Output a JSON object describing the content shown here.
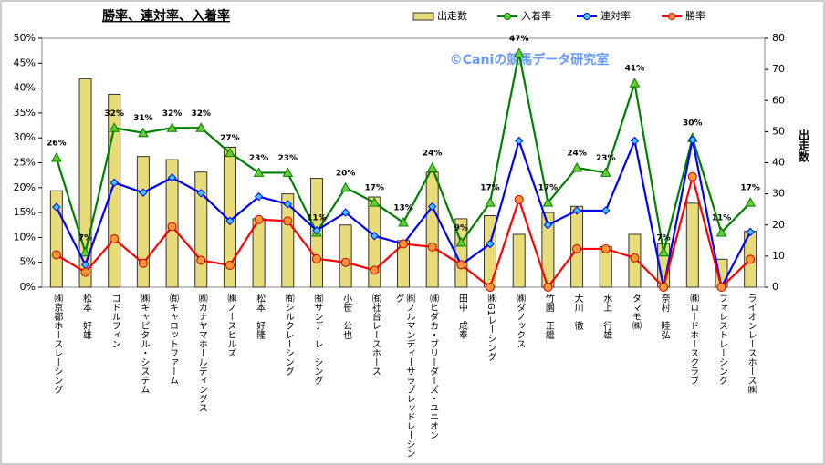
{
  "chart_data": {
    "type": "bar",
    "title": "勝率、連対率、入着率",
    "watermark": "©Caniの競馬データ研究室",
    "y2label": "出走数",
    "categories": [
      "㈱京都ホースレーシング",
      "松本　好雄",
      "ゴドルフィン",
      "㈱キャピタル・システム",
      "㈲キャロットファーム",
      "㈱カナヤマホールディングス",
      "㈱ノースヒルズ",
      "松本　好隆",
      "㈲シルクレーシング",
      "㈲サンデーレーシング",
      "小笹　公也",
      "㈲社台レースホース",
      "㈱ノルマンディーサラブレッドレーシング",
      "㈱ヒダカ・ブリーダーズ・ユニオン",
      "田中　成奉",
      "㈱G1レーシング",
      "㈱ダノックス",
      "竹園　正繼",
      "大川　徹",
      "水上　行雄",
      "タマモ㈱",
      "奈村　睦弘",
      "㈱ロードホースクラブ",
      "フォレストレーシング",
      "ライオンレースホース㈱"
    ],
    "series": [
      {
        "name": "出走数",
        "type": "bar",
        "axis": "y2",
        "color": "#e8dc7a",
        "values": [
          31,
          67,
          62,
          42,
          41,
          37,
          45,
          22,
          30,
          35,
          20,
          29,
          15,
          37,
          22,
          23,
          17,
          24,
          26,
          13,
          17,
          14,
          27,
          9,
          18
        ]
      },
      {
        "name": "入着率",
        "type": "line",
        "marker": "triangle",
        "color": "#008000",
        "marker_color": "#66cc33",
        "values": [
          26,
          7,
          32,
          31,
          32,
          32,
          27,
          23,
          23,
          11,
          20,
          17,
          13,
          24,
          9,
          17,
          47,
          17,
          24,
          23,
          41,
          7,
          30,
          11,
          17
        ],
        "value_labels": [
          "26%",
          "7%",
          "32%",
          "31%",
          "32%",
          "32%",
          "27%",
          "23%",
          "23%",
          "11%",
          "20%",
          "17%",
          "13%",
          "24%",
          "9%",
          "17%",
          "47%",
          "17%",
          "24%",
          "23%",
          "41%",
          "7%",
          "30%",
          "11%",
          "17%"
        ]
      },
      {
        "name": "連対率",
        "type": "line",
        "marker": "diamond",
        "color": "#0000ff",
        "marker_color": "#33ccff",
        "values": [
          16.1,
          4.5,
          21,
          19,
          22,
          18.9,
          13.3,
          18.2,
          16.7,
          11.4,
          15,
          10.3,
          8.7,
          16.2,
          4.5,
          8.7,
          29.4,
          12.5,
          15.4,
          15.4,
          29.4,
          0,
          29.6,
          0,
          11.1
        ]
      },
      {
        "name": "勝率",
        "type": "line",
        "marker": "circle",
        "color": "#ff0000",
        "marker_color": "#ff9933",
        "values": [
          6.5,
          3,
          9.7,
          4.8,
          12.2,
          5.4,
          4.4,
          13.6,
          13.3,
          5.7,
          5,
          3.4,
          8.7,
          8.1,
          4.5,
          0,
          17.6,
          0,
          7.7,
          7.7,
          5.9,
          0,
          22.2,
          0,
          5.6
        ]
      }
    ],
    "ylim": [
      0,
      50
    ],
    "yticks": [
      {
        "value": 0,
        "label": "0%"
      },
      {
        "value": 5,
        "label": "5%"
      },
      {
        "value": 10,
        "label": "10%"
      },
      {
        "value": 15,
        "label": "15%"
      },
      {
        "value": 20,
        "label": "20%"
      },
      {
        "value": 25,
        "label": "25%"
      },
      {
        "value": 30,
        "label": "30%"
      },
      {
        "value": 35,
        "label": "35%"
      },
      {
        "value": 40,
        "label": "40%"
      },
      {
        "value": 45,
        "label": "45%"
      },
      {
        "value": 50,
        "label": "50%"
      }
    ],
    "y2lim": [
      0,
      80
    ],
    "y2ticks": [
      0,
      10,
      20,
      30,
      40,
      50,
      60,
      70,
      80
    ]
  }
}
